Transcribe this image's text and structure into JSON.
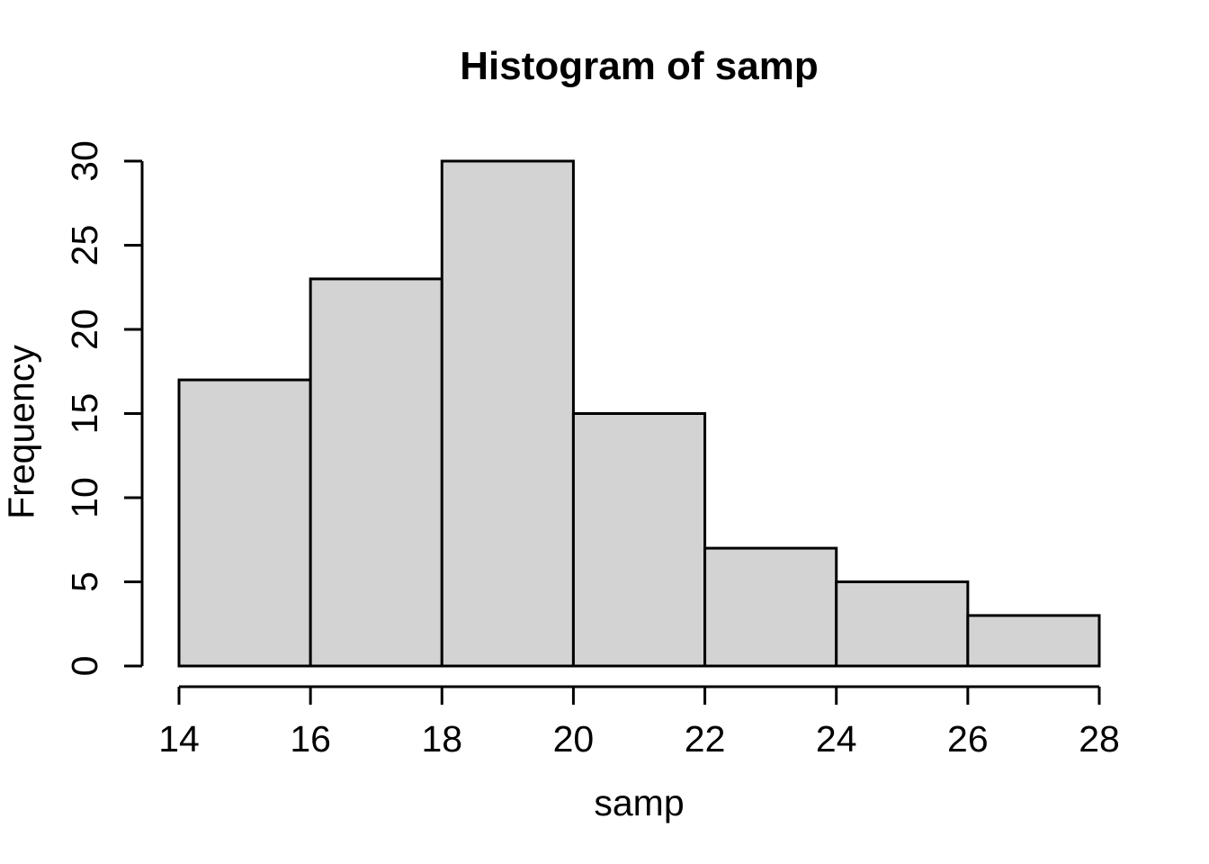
{
  "figure": {
    "background_color": "#ffffff"
  },
  "chart_data": {
    "type": "bar",
    "subtype": "histogram",
    "title": "Histogram of samp",
    "xlabel": "samp",
    "ylabel": "Frequency",
    "bin_edges": [
      14,
      16,
      18,
      20,
      22,
      24,
      26,
      28
    ],
    "counts": [
      17,
      23,
      30,
      15,
      7,
      5,
      3
    ],
    "x_ticks": [
      14,
      16,
      18,
      20,
      22,
      24,
      26,
      28
    ],
    "y_ticks": [
      0,
      5,
      10,
      15,
      20,
      25,
      30
    ],
    "xlim": [
      14,
      28
    ],
    "ylim": [
      0,
      30
    ],
    "grid": false,
    "legend": false,
    "bar_fill": "#d3d3d3",
    "bar_stroke": "#000000",
    "axis_color": "#000000",
    "text_color": "#000000"
  }
}
